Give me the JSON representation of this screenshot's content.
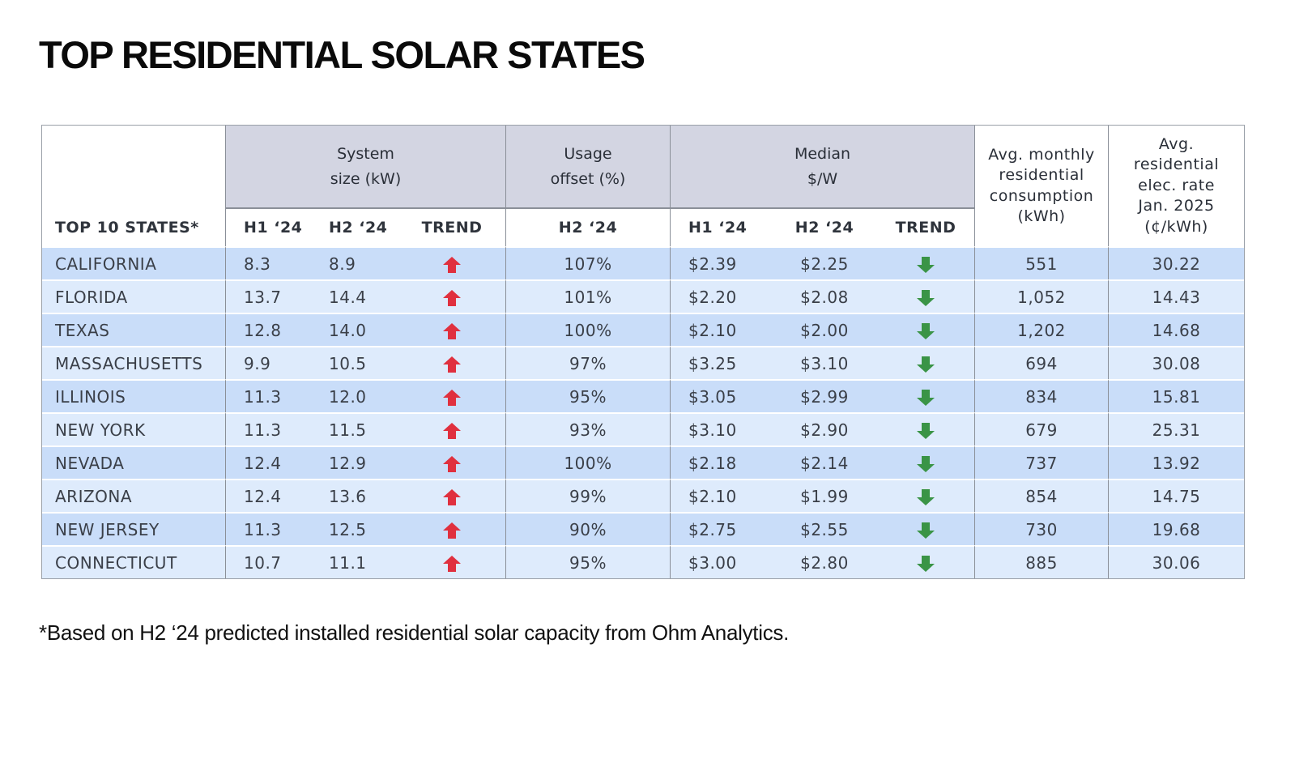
{
  "title": "TOP RESIDENTIAL SOLAR STATES",
  "table": {
    "corner_label": "TOP 10 STATES*",
    "groups": {
      "system_size": "System size (kW)",
      "usage_offset": "Usage offset (%)",
      "median_price": "Median $/W",
      "avg_consumption": "Avg. monthly residential consumption (kWh)",
      "avg_rate": "Avg. residential elec. rate Jan. 2025 (¢/kWh)"
    },
    "group_lines": {
      "system_size": [
        "System",
        "size (kW)"
      ],
      "usage_offset": [
        "Usage",
        "offset (%)"
      ],
      "median_price": [
        "Median",
        "$/W"
      ],
      "avg_consumption": [
        "Avg. monthly",
        "residential",
        "consumption",
        "(kWh)"
      ],
      "avg_rate": [
        "Avg.",
        "residential",
        "elec. rate",
        "Jan. 2025",
        "(¢/kWh)"
      ]
    },
    "subheaders": {
      "ss_h1": "H1 ‘24",
      "ss_h2": "H2 ‘24",
      "ss_trend": "TREND",
      "uo_h2": "H2 ‘24",
      "mp_h1": "H1 ‘24",
      "mp_h2": "H2 ‘24",
      "mp_trend": "TREND"
    },
    "trend_icons": {
      "up": {
        "name": "arrow-up-icon",
        "color": "#e0303f"
      },
      "down": {
        "name": "arrow-down-icon",
        "color": "#3a9446"
      }
    },
    "rows": [
      {
        "state": "CALIFORNIA",
        "ss_h1": "8.3",
        "ss_h2": "8.9",
        "ss_trend": "up",
        "uo_h2": "107%",
        "mp_h1": "$2.39",
        "mp_h2": "$2.25",
        "mp_trend": "down",
        "consumption": "551",
        "rate": "30.22"
      },
      {
        "state": "FLORIDA",
        "ss_h1": "13.7",
        "ss_h2": "14.4",
        "ss_trend": "up",
        "uo_h2": "101%",
        "mp_h1": "$2.20",
        "mp_h2": "$2.08",
        "mp_trend": "down",
        "consumption": "1,052",
        "rate": "14.43"
      },
      {
        "state": "TEXAS",
        "ss_h1": "12.8",
        "ss_h2": "14.0",
        "ss_trend": "up",
        "uo_h2": "100%",
        "mp_h1": "$2.10",
        "mp_h2": "$2.00",
        "mp_trend": "down",
        "consumption": "1,202",
        "rate": "14.68"
      },
      {
        "state": "MASSACHUSETTS",
        "ss_h1": "9.9",
        "ss_h2": "10.5",
        "ss_trend": "up",
        "uo_h2": "97%",
        "mp_h1": "$3.25",
        "mp_h2": "$3.10",
        "mp_trend": "down",
        "consumption": "694",
        "rate": "30.08"
      },
      {
        "state": "ILLINOIS",
        "ss_h1": "11.3",
        "ss_h2": "12.0",
        "ss_trend": "up",
        "uo_h2": "95%",
        "mp_h1": "$3.05",
        "mp_h2": "$2.99",
        "mp_trend": "down",
        "consumption": "834",
        "rate": "15.81"
      },
      {
        "state": "NEW YORK",
        "ss_h1": "11.3",
        "ss_h2": "11.5",
        "ss_trend": "up",
        "uo_h2": "93%",
        "mp_h1": "$3.10",
        "mp_h2": "$2.90",
        "mp_trend": "down",
        "consumption": "679",
        "rate": "25.31"
      },
      {
        "state": "NEVADA",
        "ss_h1": "12.4",
        "ss_h2": "12.9",
        "ss_trend": "up",
        "uo_h2": "100%",
        "mp_h1": "$2.18",
        "mp_h2": "$2.14",
        "mp_trend": "down",
        "consumption": "737",
        "rate": "13.92"
      },
      {
        "state": "ARIZONA",
        "ss_h1": "12.4",
        "ss_h2": "13.6",
        "ss_trend": "up",
        "uo_h2": "99%",
        "mp_h1": "$2.10",
        "mp_h2": "$1.99",
        "mp_trend": "down",
        "consumption": "854",
        "rate": "14.75"
      },
      {
        "state": "NEW JERSEY",
        "ss_h1": "11.3",
        "ss_h2": "12.5",
        "ss_trend": "up",
        "uo_h2": "90%",
        "mp_h1": "$2.75",
        "mp_h2": "$2.55",
        "mp_trend": "down",
        "consumption": "730",
        "rate": "19.68"
      },
      {
        "state": "CONNECTICUT",
        "ss_h1": "10.7",
        "ss_h2": "11.1",
        "ss_trend": "up",
        "uo_h2": "95%",
        "mp_h1": "$3.00",
        "mp_h2": "$2.80",
        "mp_trend": "down",
        "consumption": "885",
        "rate": "30.06"
      }
    ]
  },
  "footnote": "*Based on H2 ‘24 predicted installed residential solar capacity from Ohm Analytics."
}
